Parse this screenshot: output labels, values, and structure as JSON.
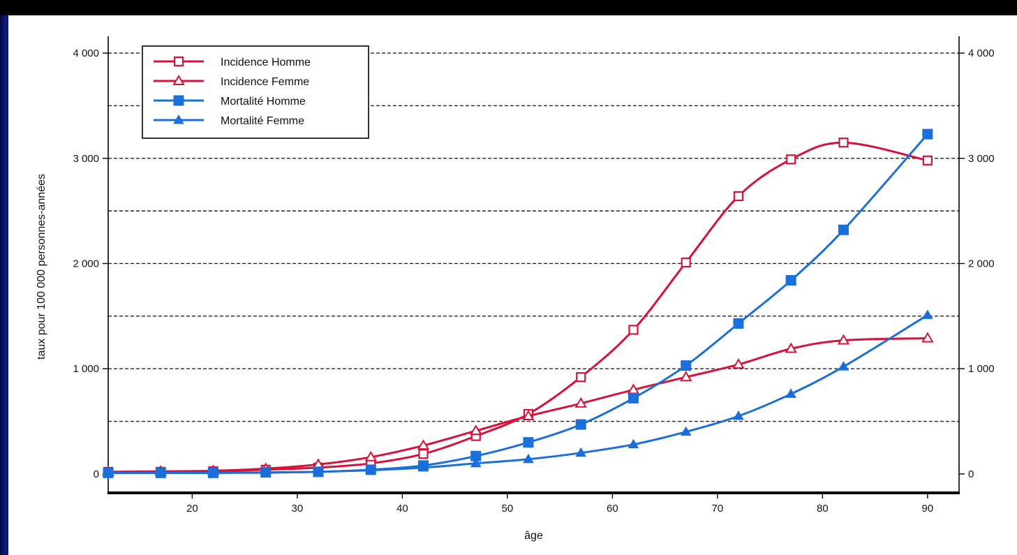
{
  "chart_data": {
    "type": "line",
    "xlabel": "âge",
    "ylabel": "taux pour 100 000 personnes-années",
    "xlim": [
      12,
      93
    ],
    "ylim": [
      -180,
      4120
    ],
    "x_ticks": [
      20,
      30,
      40,
      50,
      60,
      70,
      80,
      90
    ],
    "x_tick_labels": [
      "20",
      "30",
      "40",
      "50",
      "60",
      "70",
      "80",
      "90"
    ],
    "y_ticks": [
      0,
      1000,
      2000,
      3000,
      4000
    ],
    "y_tick_labels": [
      "0",
      "1 000",
      "2 000",
      "3 000",
      "4 000"
    ],
    "gridlines": [
      500,
      1000,
      1500,
      2000,
      2500,
      3000,
      3500,
      4000
    ],
    "grid_style": "dashed",
    "right_axis_mirrored": true,
    "legend_position": "top-left",
    "x": [
      12,
      17,
      22,
      27,
      32,
      37,
      42,
      47,
      52,
      57,
      62,
      67,
      72,
      77,
      82,
      90
    ],
    "series": [
      {
        "name": "Incidence Homme",
        "color": "#d7123a",
        "marker": "open-square",
        "values": [
          20,
          20,
          25,
          40,
          60,
          100,
          190,
          360,
          570,
          920,
          1370,
          2010,
          2640,
          2990,
          3150,
          2980
        ]
      },
      {
        "name": "Incidence Femme",
        "color": "#d7123a",
        "marker": "open-triangle",
        "values": [
          20,
          25,
          30,
          50,
          90,
          160,
          270,
          410,
          550,
          670,
          800,
          920,
          1040,
          1190,
          1270,
          1290
        ]
      },
      {
        "name": "Mortalité Homme",
        "color": "#1a6fdb",
        "marker": "filled-square",
        "values": [
          10,
          10,
          10,
          15,
          20,
          40,
          80,
          170,
          300,
          470,
          720,
          1030,
          1430,
          1840,
          2320,
          3230
        ]
      },
      {
        "name": "Mortalité Femme",
        "color": "#1a6fdb",
        "marker": "filled-triangle",
        "values": [
          10,
          10,
          10,
          12,
          20,
          35,
          60,
          100,
          140,
          200,
          280,
          400,
          550,
          760,
          1020,
          1510
        ]
      }
    ]
  }
}
